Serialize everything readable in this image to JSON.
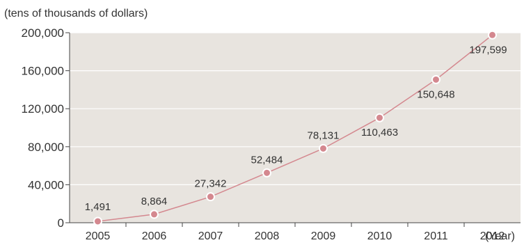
{
  "chart_data": {
    "type": "line",
    "y_unit_label": "(tens of thousands of dollars)",
    "x_unit_label": "(Year)",
    "categories": [
      "2005",
      "2006",
      "2007",
      "2008",
      "2009",
      "2010",
      "2011",
      "2012"
    ],
    "values": [
      1491,
      8864,
      27342,
      52484,
      78131,
      110463,
      150648,
      197599
    ],
    "data_labels": [
      "1,491",
      "8,864",
      "27,342",
      "52,484",
      "78,131",
      "110,463",
      "150,648",
      "197,599"
    ],
    "y_ticks": [
      "0",
      "40,000",
      "80,000",
      "120,000",
      "160,000",
      "200,000"
    ],
    "ylim": [
      0,
      200000
    ],
    "grid": true,
    "colors": {
      "plot_background": "#e8e4df",
      "gridline": "#ffffff",
      "line": "#d4888f",
      "marker_fill": "#d4888f",
      "marker_stroke": "#ffffff",
      "axis": "#444444"
    }
  }
}
